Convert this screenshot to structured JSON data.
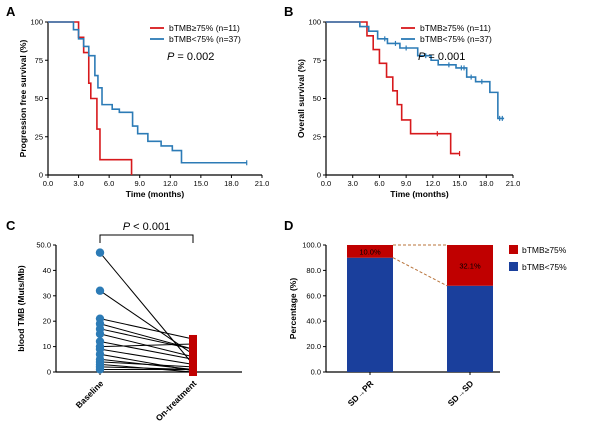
{
  "colors": {
    "red": "#d7191c",
    "blue": "#2c7bb6",
    "navy": "#1a3f9c",
    "darkred": "#c00000",
    "connector": "#b8733a"
  },
  "chart_data": [
    {
      "panel": "A",
      "type": "line",
      "subtype": "kaplan-meier",
      "xlabel": "Time (months)",
      "ylabel": "Progression free survival (%)",
      "xticks": [
        "0.0",
        "3.0",
        "6.0",
        "9.0",
        "12.0",
        "15.0",
        "18.0",
        "21.0"
      ],
      "yticks": [
        "0",
        "25",
        "50",
        "75",
        "100"
      ],
      "xlim": [
        0,
        21
      ],
      "ylim": [
        0,
        100
      ],
      "pvalue_prefix": "P",
      "pvalue_text": " = 0.002",
      "series": [
        {
          "name": "bTMB≥75% (n=11)",
          "color": "red",
          "x": [
            0,
            2.7,
            3.0,
            3.5,
            4.0,
            4.2,
            4.8,
            5.1,
            8.2
          ],
          "y": [
            100,
            100,
            90,
            80,
            60,
            50,
            30,
            10,
            0
          ]
        },
        {
          "name": "bTMB<75% (n=37)",
          "color": "blue",
          "x": [
            0,
            2.0,
            2.5,
            3.0,
            3.5,
            4.0,
            4.6,
            4.9,
            5.3,
            6.3,
            7.0,
            8.3,
            8.8,
            9.8,
            11.1,
            12.2,
            13.1,
            19.5
          ],
          "y": [
            100,
            100,
            95,
            89,
            84,
            78,
            65,
            57,
            46,
            43,
            41,
            32,
            27,
            22,
            19,
            16,
            8,
            8
          ],
          "censor_x": [
            19.5
          ]
        }
      ]
    },
    {
      "panel": "B",
      "type": "line",
      "subtype": "kaplan-meier",
      "xlabel": "Time (months)",
      "ylabel": "Overall survival (%)",
      "xticks": [
        "0.0",
        "3.0",
        "6.0",
        "9.0",
        "12.0",
        "15.0",
        "18.0",
        "21.0"
      ],
      "yticks": [
        "0",
        "25",
        "50",
        "75",
        "100"
      ],
      "xlim": [
        0,
        21
      ],
      "ylim": [
        0,
        100
      ],
      "pvalue_prefix": "P",
      "pvalue_text": " = 0.001",
      "series": [
        {
          "name": "bTMB≥75% (n=11)",
          "color": "red",
          "x": [
            0,
            2.5,
            4.6,
            5.3,
            6.0,
            6.8,
            7.5,
            8.0,
            8.5,
            9.5,
            14.0,
            15.0
          ],
          "y": [
            100,
            100,
            91,
            82,
            73,
            64,
            55,
            46,
            36,
            27,
            14,
            14
          ],
          "censor_x": [
            12.5,
            15.0
          ]
        },
        {
          "name": "bTMB<75% (n=37)",
          "color": "blue",
          "x": [
            0,
            2.5,
            3.8,
            4.8,
            5.8,
            6.9,
            8.3,
            10.3,
            11.8,
            12.6,
            14.6,
            15.8,
            16.8,
            18.4,
            19.3,
            20.0
          ],
          "y": [
            100,
            100,
            97,
            94,
            89,
            86,
            83,
            78,
            75,
            72,
            70,
            64,
            61,
            54,
            37,
            37
          ],
          "censor_x": [
            6.6,
            7.8,
            9.0,
            11.2,
            13.8,
            15.2,
            15.5,
            16.3,
            17.5,
            19.5,
            19.8
          ]
        }
      ]
    },
    {
      "panel": "C",
      "type": "scatter",
      "subtype": "paired-before-after",
      "ylabel": "blood TMB (Muts/Mb)",
      "categories": [
        "Baseline",
        "On-treatment"
      ],
      "yticks": [
        "0",
        "10",
        "20",
        "30",
        "40",
        "50.0"
      ],
      "ylim": [
        0,
        50
      ],
      "pvalue_prefix": "P",
      "pvalue_text": " < 0.001",
      "pairs": [
        [
          47,
          3
        ],
        [
          32,
          7
        ],
        [
          21,
          13
        ],
        [
          19,
          9
        ],
        [
          17,
          9
        ],
        [
          15,
          6
        ],
        [
          12,
          5
        ],
        [
          10,
          11
        ],
        [
          9,
          3
        ],
        [
          7,
          0.5
        ],
        [
          5,
          1
        ],
        [
          4,
          2
        ],
        [
          3,
          0
        ],
        [
          2,
          1
        ],
        [
          1,
          1
        ]
      ]
    },
    {
      "panel": "D",
      "type": "bar",
      "subtype": "stacked-percent",
      "ylabel": "Percentage (%)",
      "categories": [
        "SD→PR",
        "SD→SD"
      ],
      "yticks": [
        "0.0",
        "20.0",
        "40.0",
        "60.0",
        "80.0",
        "100.0"
      ],
      "ylim": [
        0,
        100
      ],
      "series": [
        {
          "name": "bTMB<75%",
          "color": "navy",
          "values": [
            90.0,
            67.9
          ]
        },
        {
          "name": "bTMB≥75%",
          "color": "darkred",
          "values": [
            10.0,
            32.1
          ],
          "labels": [
            "10.0%",
            "32.1%"
          ]
        }
      ]
    }
  ]
}
